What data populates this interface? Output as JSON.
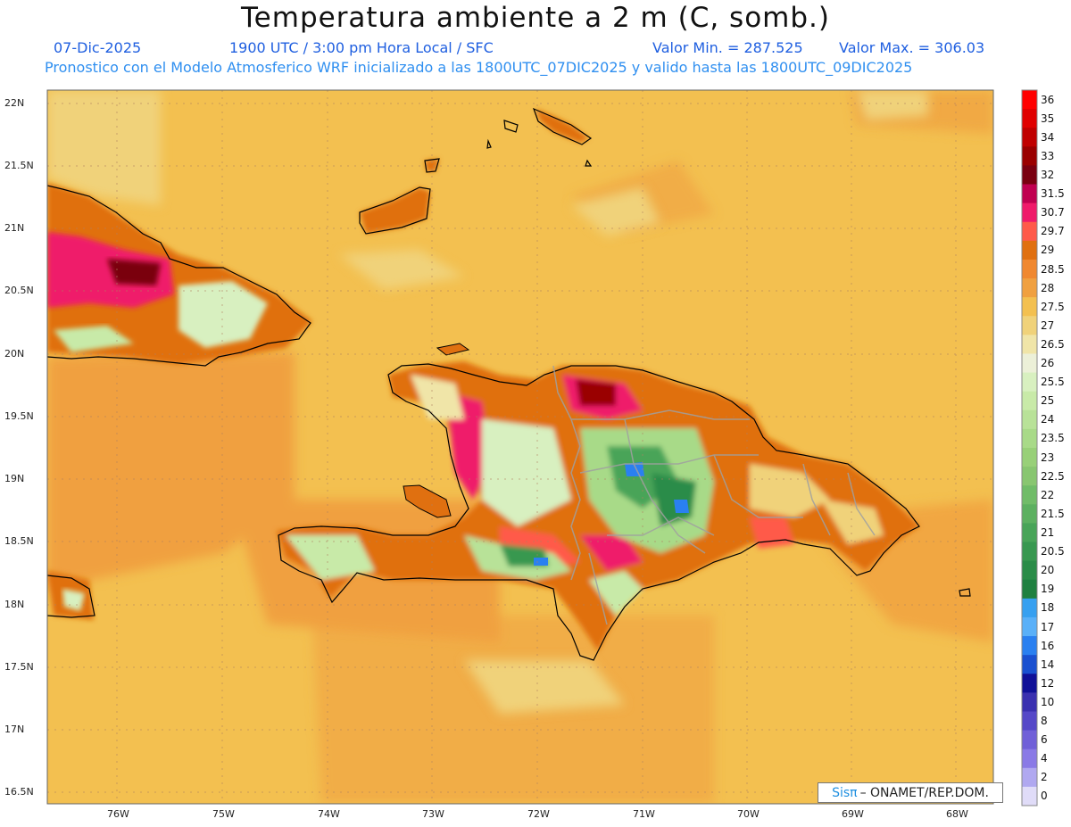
{
  "header": {
    "title": "Temperatura ambiente a 2 m (C, somb.)",
    "date": "07-Dic-2025",
    "time": "1900 UTC / 3:00 pm Hora Local / SFC",
    "min": "Valor Min. = 287.525",
    "max": "Valor Max. = 306.03",
    "model": "Pronostico con el Modelo Atmosferico WRF inicializado a las 1800UTC_07DIC2025 y valido hasta las  1800UTC_09DIC2025"
  },
  "axes": {
    "lat_labels": [
      "22N",
      "21.5N",
      "21N",
      "20.5N",
      "20N",
      "19.5N",
      "19N",
      "18.5N",
      "18N",
      "17.5N",
      "17N",
      "16.5N"
    ],
    "lon_labels": [
      "76W",
      "75W",
      "74W",
      "73W",
      "72W",
      "71W",
      "70W",
      "69W",
      "68W"
    ]
  },
  "legend": {
    "levels": [
      "36",
      "35",
      "34",
      "33",
      "32",
      "31.5",
      "30.7",
      "29.7",
      "29",
      "28.5",
      "28",
      "27.5",
      "27",
      "26.5",
      "26",
      "25.5",
      "25",
      "24",
      "23.5",
      "23",
      "22.5",
      "22",
      "21.5",
      "21",
      "20.5",
      "20",
      "19",
      "18",
      "17",
      "16",
      "14",
      "12",
      "10",
      "8",
      "6",
      "4",
      "2",
      "0"
    ],
    "colors": [
      "#ff0000",
      "#e00000",
      "#c00000",
      "#9a0000",
      "#7a0010",
      "#c00050",
      "#ef1a6a",
      "#ff5a4a",
      "#e07010",
      "#f08830",
      "#f0a040",
      "#f3c050",
      "#f0d27a",
      "#f0e5a8",
      "#ecf0d8",
      "#d8f0c0",
      "#c8eaa8",
      "#b8e298",
      "#a8da88",
      "#98d078",
      "#88c670",
      "#70bc68",
      "#5cb060",
      "#48a458",
      "#389850",
      "#2a8c48",
      "#1f8040",
      "#37a0f0",
      "#5ab0f8",
      "#2a80f0",
      "#1a50d0",
      "#101098",
      "#3a30b0",
      "#5548c8",
      "#7060d8",
      "#8a7ae6",
      "#b0a8f0",
      "#e0dcf8"
    ]
  },
  "credit": {
    "logo": "Sisπ",
    "text": "– ONAMET/REP.DOM."
  }
}
